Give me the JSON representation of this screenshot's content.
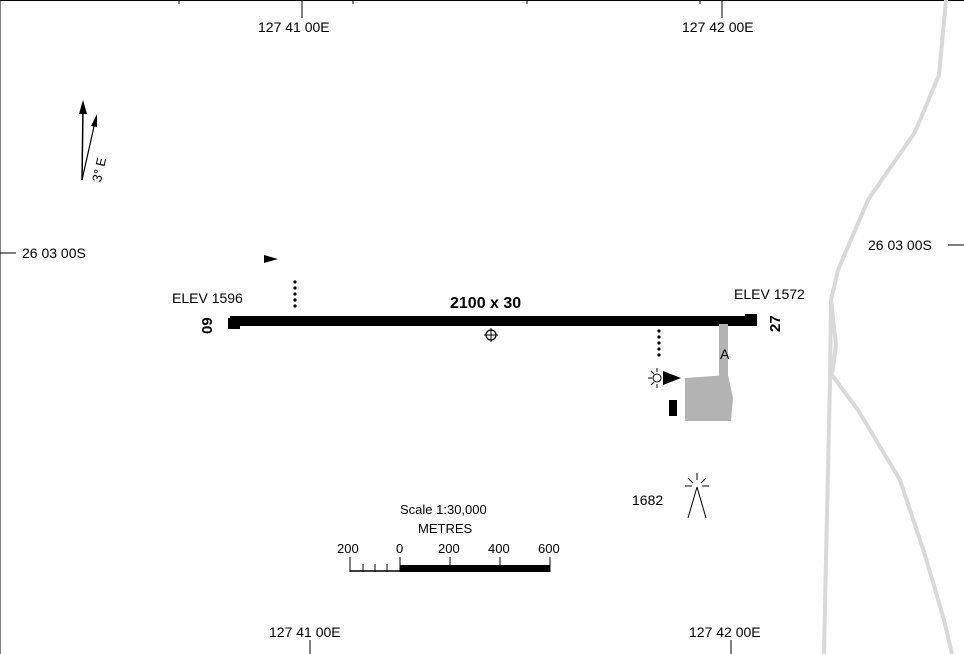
{
  "map": {
    "background_color": "#ffffff",
    "runway_color": "#000000",
    "apron_color": "#b3b3b3",
    "road_color": "#d9d9d9"
  },
  "grid": {
    "top_lon_left": "127 41 00E",
    "top_lon_right": "127 42 00E",
    "bottom_lon_left": "127 41 00E",
    "bottom_lon_right": "127 42 00E",
    "lat_left": "26 03 00S",
    "lat_right": "26 03 00S"
  },
  "north_arrow": {
    "variation": "3° E",
    "icon": "north-arrow-icon"
  },
  "runway": {
    "dimensions": "2100 x 30",
    "end_west_designator": "09",
    "end_east_designator": "27",
    "elev_west": "ELEV 1596",
    "elev_east": "ELEV 1572"
  },
  "taxiway": {
    "label": "A"
  },
  "obstacle": {
    "elevation": "1682",
    "icon": "lit-obstacle-icon"
  },
  "scale": {
    "title": "Scale 1:30,000",
    "units": "METRES",
    "ticks": [
      "200",
      "0",
      "200",
      "400",
      "600"
    ]
  }
}
